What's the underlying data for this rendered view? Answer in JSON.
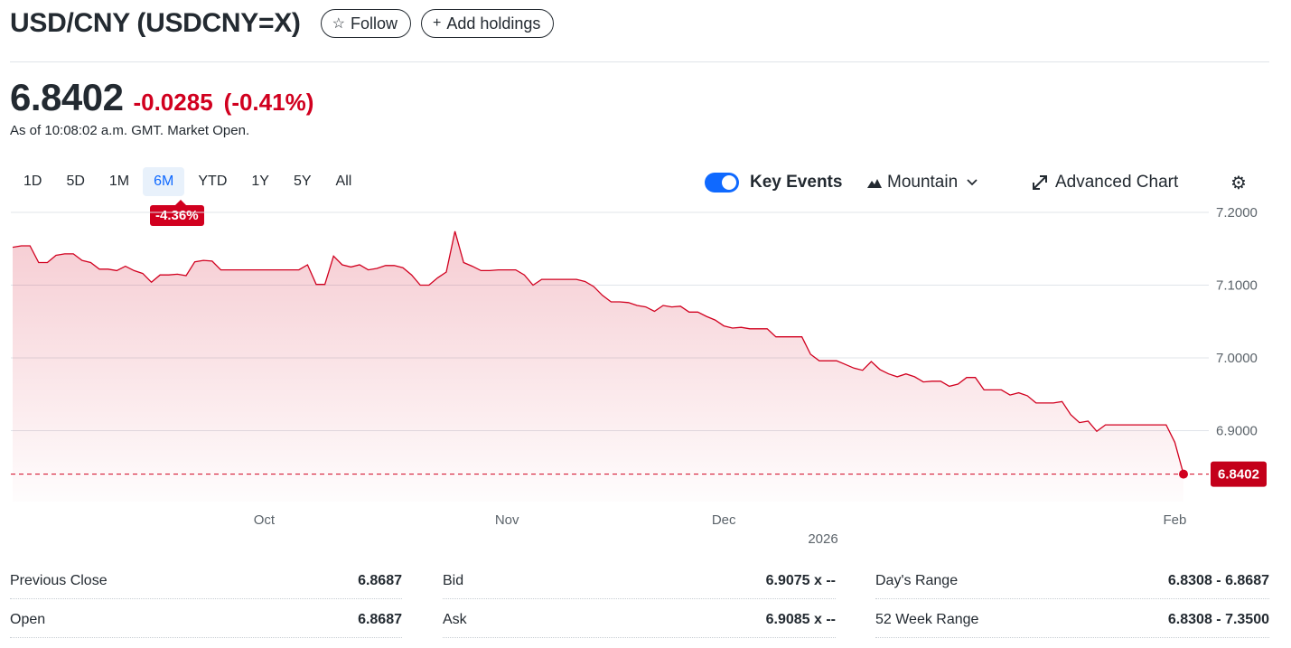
{
  "header": {
    "title": "USD/CNY (USDCNY=X)",
    "follow_label": "Follow",
    "add_holdings_label": "Add holdings"
  },
  "quote": {
    "price": "6.8402",
    "change": "-0.0285",
    "change_pct": "(-0.41%)",
    "as_of": "As of 10:08:02 a.m. GMT. Market Open."
  },
  "ranges": [
    "1D",
    "5D",
    "1M",
    "6M",
    "YTD",
    "1Y",
    "5Y",
    "All"
  ],
  "active_range": "6M",
  "range_change_badge": "-4.36%",
  "toolbar": {
    "key_events_label": "Key Events",
    "key_events_on": true,
    "chart_type_label": "Mountain",
    "advanced_chart_label": "Advanced Chart"
  },
  "colors": {
    "down": "#d1001f",
    "accent": "#0f69ff"
  },
  "chart_data": {
    "type": "area",
    "y_ticks": [
      "7.2000",
      "7.1000",
      "7.0000",
      "6.9000"
    ],
    "ylim": [
      6.83,
      7.21
    ],
    "x_tick_labels": [
      "Oct",
      "Nov",
      "Dec",
      "Feb"
    ],
    "year_label": "2026",
    "last_value_label": "6.8402",
    "grid": true,
    "series": [
      {
        "values": [
          7.152,
          7.154,
          7.154,
          7.131,
          7.131,
          7.141,
          7.143,
          7.143,
          7.134,
          7.131,
          7.122,
          7.122,
          7.12,
          7.126,
          7.12,
          7.116,
          7.104,
          7.114,
          7.114,
          7.115,
          7.113,
          7.132,
          7.134,
          7.133,
          7.121,
          7.121,
          7.121,
          7.121,
          7.121,
          7.121,
          7.121,
          7.121,
          7.121,
          7.121,
          7.128,
          7.101,
          7.101,
          7.14,
          7.128,
          7.125,
          7.128,
          7.121,
          7.123,
          7.127,
          7.127,
          7.124,
          7.114,
          7.1,
          7.1,
          7.11,
          7.118,
          7.174,
          7.131,
          7.126,
          7.12,
          7.12,
          7.121,
          7.121,
          7.121,
          7.114,
          7.1,
          7.108,
          7.108,
          7.108,
          7.108,
          7.108,
          7.105,
          7.098,
          7.086,
          7.077,
          7.077,
          7.076,
          7.072,
          7.07,
          7.064,
          7.072,
          7.07,
          7.071,
          7.063,
          7.063,
          7.057,
          7.052,
          7.044,
          7.041,
          7.042,
          7.04,
          7.04,
          7.04,
          7.029,
          7.029,
          7.029,
          7.029,
          7.005,
          6.996,
          6.996,
          6.996,
          6.991,
          6.986,
          6.983,
          6.995,
          6.984,
          6.978,
          6.974,
          6.978,
          6.974,
          6.967,
          6.968,
          6.968,
          6.961,
          6.964,
          6.973,
          6.973,
          6.956,
          6.956,
          6.956,
          6.949,
          6.952,
          6.948,
          6.938,
          6.938,
          6.938,
          6.94,
          6.922,
          6.911,
          6.913,
          6.899,
          6.908,
          6.908,
          6.908,
          6.908,
          6.908,
          6.908,
          6.908,
          6.908,
          6.884,
          6.8402
        ]
      }
    ]
  },
  "stats": [
    {
      "label": "Previous Close",
      "value": "6.8687"
    },
    {
      "label": "Bid",
      "value": "6.9075 x --"
    },
    {
      "label": "Day's Range",
      "value": "6.8308 - 6.8687"
    },
    {
      "label": "Open",
      "value": "6.8687"
    },
    {
      "label": "Ask",
      "value": "6.9085 x --"
    },
    {
      "label": "52 Week Range",
      "value": "6.8308 - 7.3500"
    }
  ]
}
